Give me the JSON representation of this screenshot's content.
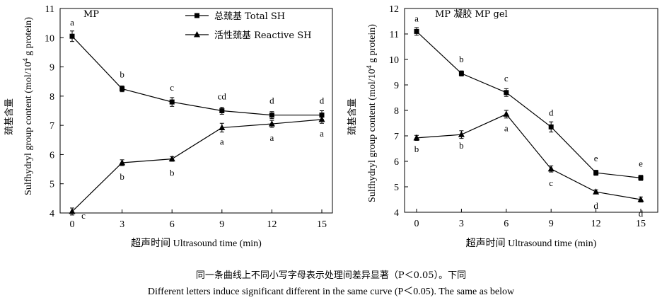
{
  "chart_data": [
    {
      "type": "line",
      "title": "MP",
      "xlabel": "超声时间 Ultrasound time (min)",
      "ylabel_cn": "巯基含量",
      "ylabel_en": "Sulfhydryl group content (mol/10",
      "ylabel_sup": "4",
      "ylabel_tail": " g protein)",
      "x": [
        0,
        3,
        6,
        9,
        12,
        15
      ],
      "xlim": [
        0,
        15
      ],
      "ylim": [
        4,
        11
      ],
      "yticks": [
        4,
        5,
        6,
        7,
        8,
        9,
        10,
        11
      ],
      "legend": "top-center",
      "grid": false,
      "series": [
        {
          "name": "总巯基 Total SH",
          "marker": "square",
          "values": [
            10.05,
            8.25,
            7.8,
            7.5,
            7.35,
            7.35
          ],
          "errors": [
            0.18,
            0.1,
            0.15,
            0.12,
            0.12,
            0.15
          ],
          "labels": [
            "a",
            "b",
            "c",
            "cd",
            "d",
            "d"
          ]
        },
        {
          "name": "活性巯基 Reactive SH",
          "marker": "triangle",
          "values": [
            4.05,
            5.72,
            5.85,
            6.92,
            7.05,
            7.2
          ],
          "errors": [
            0.12,
            0.1,
            0.08,
            0.15,
            0.12,
            0.13
          ],
          "labels": [
            "c",
            "b",
            "b",
            "a",
            "a",
            "a"
          ]
        }
      ]
    },
    {
      "type": "line",
      "title": "MP 凝胶 MP gel",
      "xlabel": "超声时间 Ultrasound time (min)",
      "ylabel_cn": "巯基含量",
      "ylabel_en": "Sulfhydryl group content (mol/10",
      "ylabel_sup": "4",
      "ylabel_tail": " g protein)",
      "x": [
        0,
        3,
        6,
        9,
        12,
        15
      ],
      "xlim": [
        0,
        15
      ],
      "ylim": [
        4,
        12
      ],
      "yticks": [
        4,
        5,
        6,
        7,
        8,
        9,
        10,
        11,
        12
      ],
      "grid": false,
      "series": [
        {
          "name": "总巯基 Total SH",
          "marker": "square",
          "values": [
            11.1,
            9.45,
            8.7,
            7.35,
            5.55,
            5.35
          ],
          "errors": [
            0.15,
            0.1,
            0.15,
            0.2,
            0.1,
            0.1
          ],
          "labels": [
            "a",
            "b",
            "c",
            "d",
            "e",
            "e"
          ]
        },
        {
          "name": "活性巯基 Reactive SH",
          "marker": "triangle",
          "values": [
            6.92,
            7.05,
            7.85,
            5.7,
            4.8,
            4.5
          ],
          "errors": [
            0.1,
            0.15,
            0.15,
            0.12,
            0.08,
            0.1
          ],
          "labels": [
            "b",
            "b",
            "a",
            "c",
            "d",
            "d"
          ]
        }
      ]
    }
  ],
  "caption": {
    "cn": "同一条曲线上不同小写字母表示处理间差异显著（P＜0.05）。下同",
    "en": "Different letters induce significant different in the same curve (P＜0.05). The same as below"
  }
}
